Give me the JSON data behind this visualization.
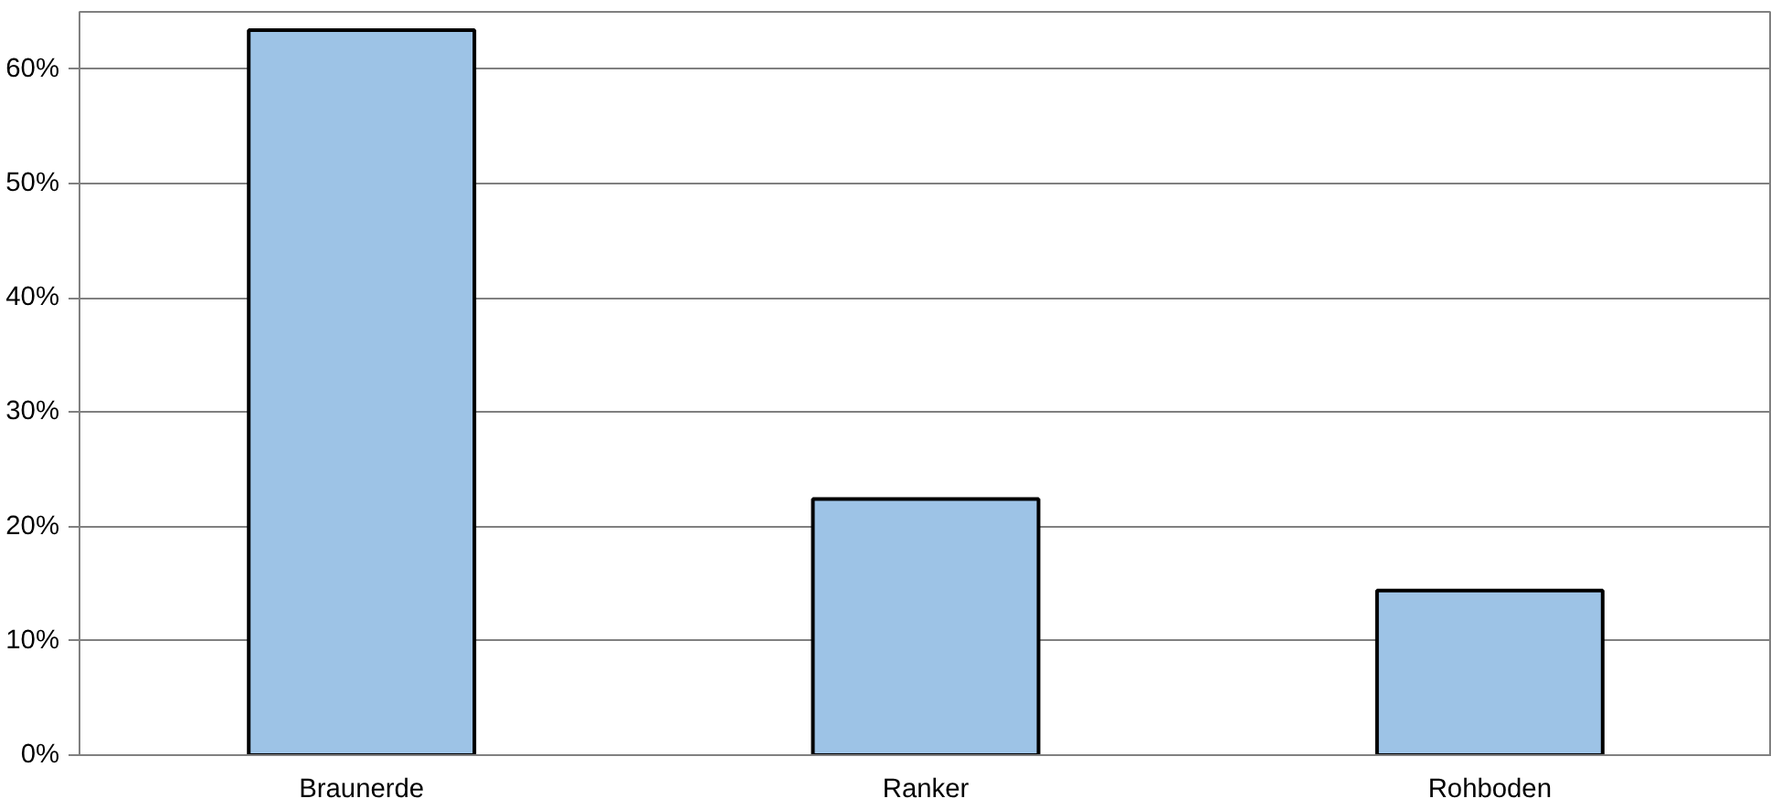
{
  "chart_data": {
    "type": "bar",
    "categories": [
      "Braunerde",
      "Ranker",
      "Rohboden"
    ],
    "values": [
      63.4,
      22.4,
      14.4
    ],
    "color": "#9dc3e6",
    "ylim": [
      0,
      65
    ],
    "yticks": [
      {
        "value": 0,
        "label": "0%"
      },
      {
        "value": 10,
        "label": "10%"
      },
      {
        "value": 20,
        "label": "20%"
      },
      {
        "value": 30,
        "label": "30%"
      },
      {
        "value": 40,
        "label": "40%"
      },
      {
        "value": 50,
        "label": "50%"
      },
      {
        "value": 60,
        "label": "60%"
      }
    ],
    "grid": "y"
  }
}
